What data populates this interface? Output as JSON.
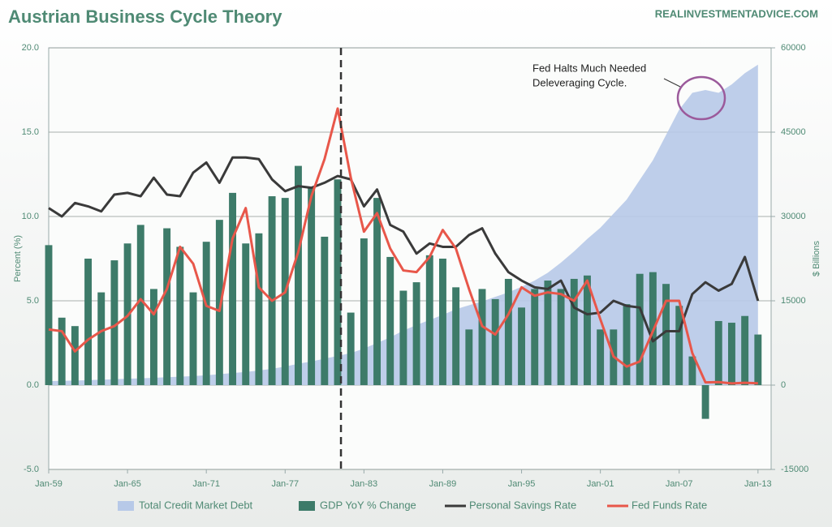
{
  "chart_data": {
    "type": "combo",
    "title": "Austrian Business Cycle Theory",
    "source": "REALINVESTMENTADVICE.COM",
    "y_label": "Percent (%)",
    "y2_label": "$ Billions",
    "annotation": [
      "Fed Halts Much Needed",
      "Deleveraging Cycle."
    ],
    "vline_x": 1981.25,
    "x": [
      1959,
      1960,
      1961,
      1962,
      1963,
      1964,
      1965,
      1966,
      1967,
      1968,
      1969,
      1970,
      1971,
      1972,
      1973,
      1974,
      1975,
      1976,
      1977,
      1978,
      1979,
      1980,
      1981,
      1982,
      1983,
      1984,
      1985,
      1986,
      1987,
      1988,
      1989,
      1990,
      1991,
      1992,
      1993,
      1994,
      1995,
      1996,
      1997,
      1998,
      1999,
      2000,
      2001,
      2002,
      2003,
      2004,
      2005,
      2006,
      2007,
      2008,
      2009,
      2010,
      2011,
      2012,
      2013
    ],
    "xlim": [
      1959,
      2014
    ],
    "xticks": [
      {
        "value": 1959,
        "label": "Jan-59"
      },
      {
        "value": 1965,
        "label": "Jan-65"
      },
      {
        "value": 1971,
        "label": "Jan-71"
      },
      {
        "value": 1977,
        "label": "Jan-77"
      },
      {
        "value": 1983,
        "label": "Jan-83"
      },
      {
        "value": 1989,
        "label": "Jan-89"
      },
      {
        "value": 1995,
        "label": "Jan-95"
      },
      {
        "value": 2001,
        "label": "Jan-01"
      },
      {
        "value": 2007,
        "label": "Jan-07"
      },
      {
        "value": 2013,
        "label": "Jan-13"
      }
    ],
    "ylim": [
      -5,
      20
    ],
    "yticks": [
      {
        "value": -5,
        "label": "-5.0"
      },
      {
        "value": 0,
        "label": "0.0"
      },
      {
        "value": 5,
        "label": "5.0"
      },
      {
        "value": 10,
        "label": "10.0"
      },
      {
        "value": 15,
        "label": "15.0"
      },
      {
        "value": 20,
        "label": "20.0"
      }
    ],
    "y2lim": [
      -15000,
      60000
    ],
    "y2ticks": [
      -15000,
      0,
      15000,
      30000,
      45000,
      60000
    ],
    "grid": true,
    "series": [
      {
        "name": "Total Credit Market Debt",
        "type": "area",
        "axis": "y2",
        "color": "#b7c9e8",
        "values": [
          700,
          760,
          820,
          890,
          970,
          1050,
          1130,
          1210,
          1300,
          1400,
          1500,
          1600,
          1750,
          1950,
          2150,
          2350,
          2600,
          2900,
          3300,
          3800,
          4200,
          4700,
          5200,
          5700,
          6500,
          7500,
          8500,
          9700,
          10700,
          11600,
          12500,
          13500,
          14200,
          14900,
          15700,
          16500,
          17500,
          18600,
          20000,
          21800,
          23800,
          26000,
          28000,
          30500,
          33000,
          36500,
          40000,
          44500,
          49000,
          52000,
          52500,
          52000,
          53500,
          55500,
          57000
        ]
      },
      {
        "name": "GDP YoY % Change",
        "type": "bar",
        "color": "#3d7b69",
        "values": [
          8.3,
          4,
          3.5,
          7.5,
          5.5,
          7.4,
          8.4,
          9.5,
          5.7,
          9.3,
          8.2,
          5.5,
          8.5,
          9.8,
          11.4,
          8.4,
          9,
          11.2,
          11.1,
          13,
          11.7,
          8.8,
          12.2,
          4.3,
          8.7,
          11.1,
          7.6,
          5.6,
          6.1,
          7.7,
          7.5,
          5.8,
          3.3,
          5.7,
          5.1,
          6.3,
          4.6,
          5.7,
          6.2,
          5.7,
          6.3,
          6.5,
          3.3,
          3.3,
          4.8,
          6.6,
          6.7,
          6,
          4.7,
          1.7,
          -2,
          3.8,
          3.7,
          4.1,
          3
        ]
      },
      {
        "name": "Personal Savings Rate",
        "type": "line",
        "color": "#3a3a3a",
        "values": [
          10.5,
          10,
          10.8,
          10.6,
          10.3,
          11.3,
          11.4,
          11.2,
          12.3,
          11.3,
          11.2,
          12.6,
          13.2,
          12,
          13.5,
          13.5,
          13.4,
          12.2,
          11.5,
          11.8,
          11.7,
          12,
          12.4,
          12.2,
          10.6,
          11.6,
          9.5,
          9.1,
          7.8,
          8.4,
          8.2,
          8.2,
          8.9,
          9.3,
          7.8,
          6.7,
          6.2,
          5.8,
          5.7,
          6.2,
          4.6,
          4.2,
          4.3,
          5,
          4.7,
          4.6,
          2.6,
          3.2,
          3.2,
          5.4,
          6.1,
          5.6,
          6,
          7.6,
          5
        ]
      },
      {
        "name": "Fed Funds Rate",
        "type": "line",
        "color": "#e8574a",
        "values": [
          3.3,
          3.2,
          2,
          2.7,
          3.2,
          3.5,
          4.1,
          5.1,
          4.2,
          5.7,
          8.2,
          7.2,
          4.7,
          4.4,
          8.7,
          10.5,
          5.8,
          5,
          5.5,
          7.9,
          11.2,
          13.4,
          16.4,
          12.3,
          9.1,
          10.2,
          8.1,
          6.8,
          6.7,
          7.6,
          9.2,
          8.1,
          5.7,
          3.5,
          3,
          4.2,
          5.8,
          5.3,
          5.5,
          5.4,
          5,
          6.2,
          3.9,
          1.7,
          1.1,
          1.4,
          3.2,
          5,
          5,
          1.9,
          0.16,
          0.18,
          0.1,
          0.14,
          0.11
        ]
      }
    ]
  }
}
